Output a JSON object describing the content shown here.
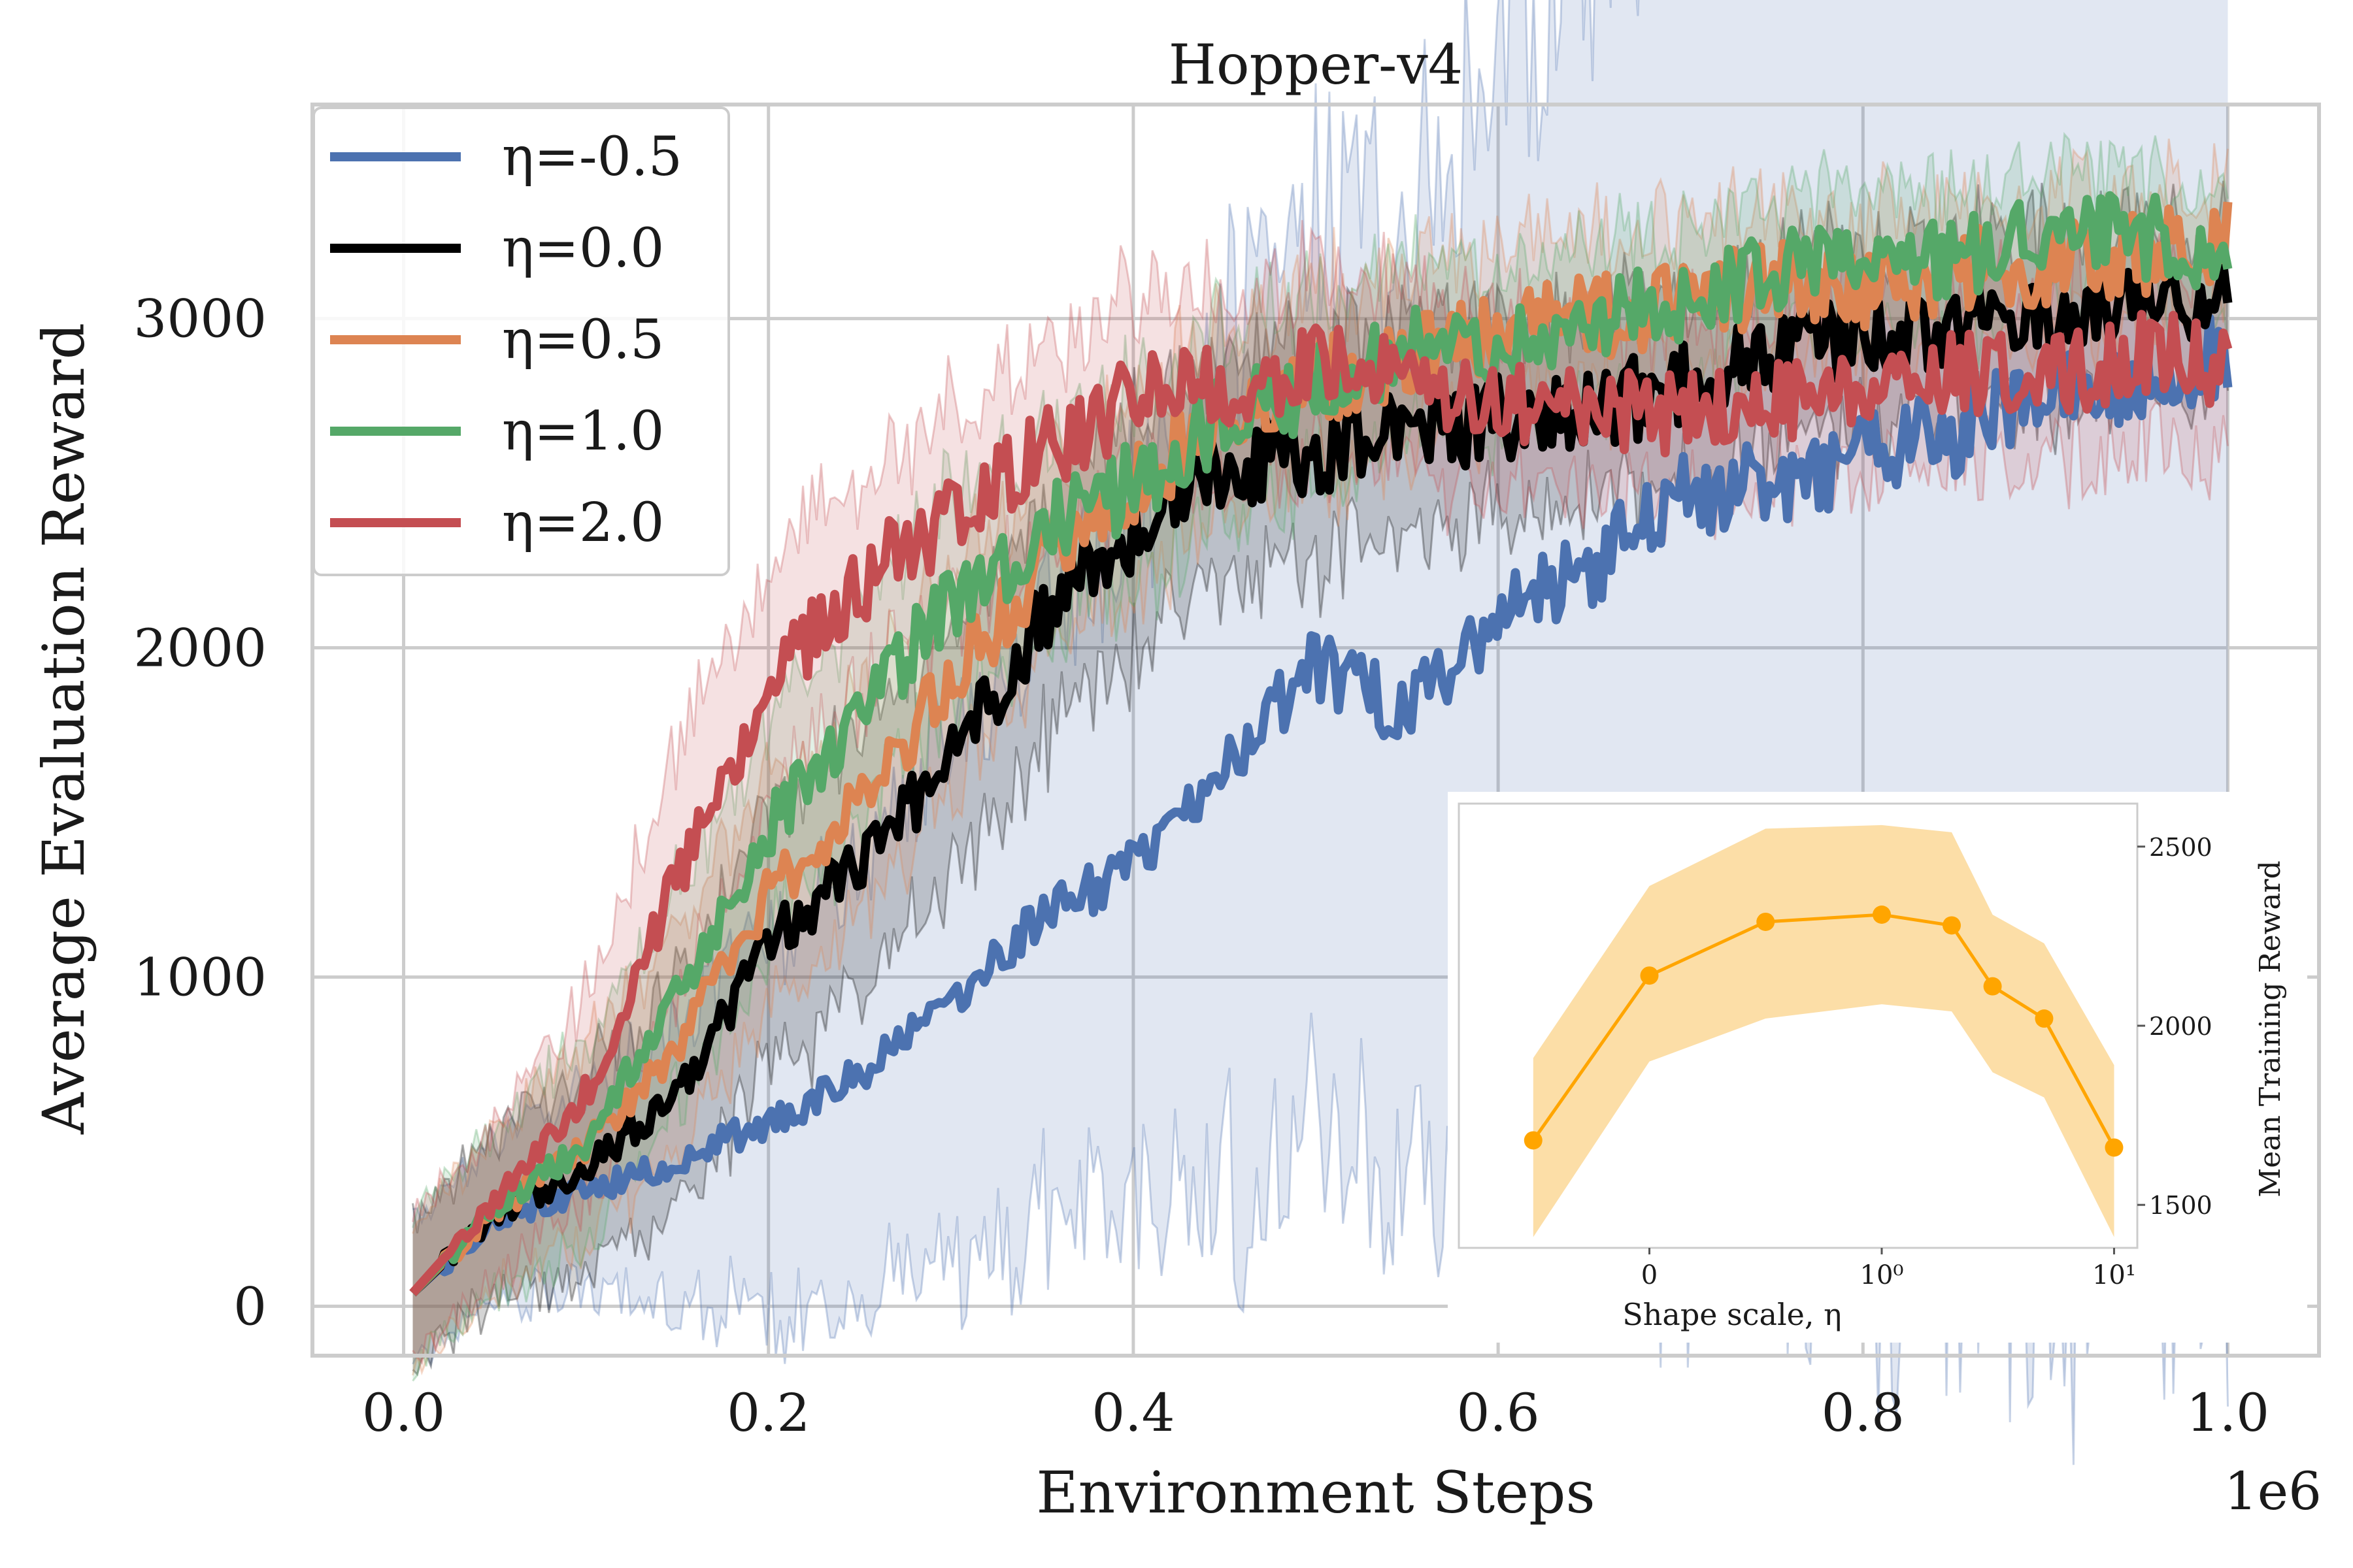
{
  "chart_data": [
    {
      "type": "line",
      "title": "Hopper-v4",
      "xlabel": "Environment Steps",
      "ylabel": "Average Evaluation Reward",
      "x_offset_text": "1e6",
      "xlim": [
        -0.05,
        1.05
      ],
      "ylim": [
        -150,
        3650
      ],
      "x_ticks": [
        0.0,
        0.2,
        0.4,
        0.6,
        0.8,
        1.0
      ],
      "x_tick_labels": [
        "0.0",
        "0.2",
        "0.4",
        "0.6",
        "0.8",
        "1.0"
      ],
      "y_ticks": [
        0,
        1000,
        2000,
        3000
      ],
      "y_tick_labels": [
        "0",
        "1000",
        "2000",
        "3000"
      ],
      "grid": true,
      "legend_position": "top-left",
      "x": [
        0.005,
        0.05,
        0.1,
        0.15,
        0.2,
        0.25,
        0.3,
        0.35,
        0.4,
        0.45,
        0.5,
        0.55,
        0.6,
        0.65,
        0.7,
        0.75,
        0.8,
        0.85,
        0.9,
        0.95,
        1.0
      ],
      "series": [
        {
          "name": "η=-0.5",
          "color": "#4c72b0",
          "values": [
            40,
            270,
            350,
            440,
            560,
            700,
            920,
            1180,
            1350,
            1650,
            1950,
            1800,
            2100,
            2250,
            2450,
            2500,
            2580,
            2650,
            2780,
            2800,
            2900
          ],
          "band": [
            220,
            240,
            310,
            420,
            560,
            650,
            800,
            900,
            1050,
            1300,
            1400,
            1500,
            1700,
            1900,
            2100,
            2200,
            2350,
            2450,
            2550,
            2600,
            2650
          ]
        },
        {
          "name": "η=0.0",
          "color": "#000000",
          "values": [
            40,
            280,
            420,
            650,
            1100,
            1350,
            1650,
            2100,
            2350,
            2550,
            2600,
            2650,
            2700,
            2720,
            2800,
            2900,
            2950,
            2980,
            3000,
            3050,
            3050
          ],
          "band": [
            220,
            240,
            300,
            350,
            380,
            400,
            380,
            380,
            350,
            330,
            320,
            310,
            300,
            300,
            290,
            280,
            270,
            260,
            250,
            240,
            230
          ]
        },
        {
          "name": "η=0.5",
          "color": "#dd8452",
          "values": [
            40,
            290,
            480,
            800,
            1250,
            1550,
            1900,
            2250,
            2500,
            2700,
            2800,
            2900,
            2950,
            3000,
            3050,
            3100,
            3100,
            3150,
            3150,
            3200,
            3250
          ],
          "band": [
            220,
            240,
            300,
            330,
            340,
            330,
            320,
            300,
            290,
            280,
            270,
            260,
            250,
            240,
            230,
            220,
            210,
            200,
            200,
            200,
            200
          ]
        },
        {
          "name": "η=1.0",
          "color": "#55a868",
          "values": [
            40,
            300,
            500,
            950,
            1450,
            1800,
            2150,
            2350,
            2500,
            2700,
            2800,
            2900,
            2950,
            3000,
            3050,
            3150,
            3150,
            3200,
            3250,
            3250,
            3200
          ],
          "band": [
            220,
            240,
            300,
            330,
            340,
            330,
            320,
            300,
            290,
            280,
            270,
            260,
            250,
            240,
            230,
            220,
            210,
            200,
            200,
            200,
            200
          ]
        },
        {
          "name": "η=2.0",
          "color": "#c44e52",
          "values": [
            40,
            320,
            650,
            1300,
            1900,
            2200,
            2400,
            2600,
            2750,
            2800,
            2850,
            2800,
            2750,
            2750,
            2700,
            2750,
            2800,
            2850,
            2800,
            2900,
            2850
          ],
          "band": [
            220,
            240,
            320,
            380,
            360,
            330,
            310,
            300,
            290,
            280,
            270,
            270,
            260,
            260,
            260,
            260,
            260,
            260,
            260,
            260,
            260
          ]
        }
      ]
    },
    {
      "type": "line",
      "title": "",
      "xlabel": "Shape scale, η",
      "ylabel": "Mean Training Reward",
      "x_scale": "symlog",
      "x_tick_labels": [
        "0",
        "10⁰",
        "10¹"
      ],
      "y_ticks": [
        1500,
        2000,
        2500
      ],
      "y_tick_labels": [
        "1500",
        "2000",
        "2500"
      ],
      "ylim": [
        1380,
        2620
      ],
      "color": "#ffa500",
      "band_color": "#fbd38a",
      "x": [
        -0.5,
        0.0,
        0.5,
        1.0,
        2.0,
        3.0,
        5.0,
        10.0
      ],
      "values": [
        1680,
        2140,
        2290,
        2310,
        2280,
        2110,
        2020,
        1660
      ],
      "upper": [
        1910,
        2390,
        2550,
        2560,
        2540,
        2310,
        2230,
        1890
      ],
      "lower": [
        1410,
        1900,
        2020,
        2060,
        2040,
        1870,
        1800,
        1410
      ]
    }
  ]
}
